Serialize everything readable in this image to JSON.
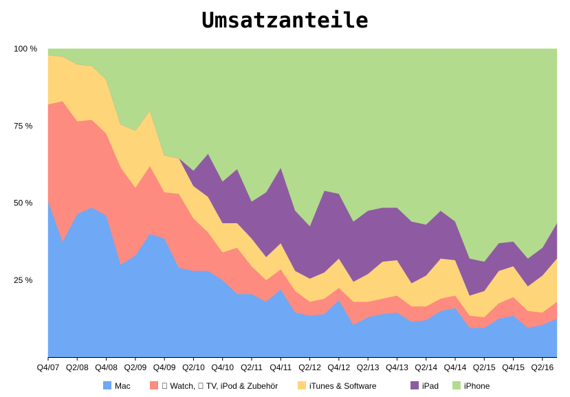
{
  "chart_data": {
    "type": "area",
    "title": "Umsatzanteile",
    "xlabel": "",
    "ylabel": "",
    "ylim": [
      0,
      100
    ],
    "y_ticks": [
      "25 %",
      "50 %",
      "75 %",
      "100 %"
    ],
    "x": [
      "Q4/07",
      "Q1/08",
      "Q2/08",
      "Q3/08",
      "Q4/08",
      "Q1/09",
      "Q2/09",
      "Q3/09",
      "Q4/09",
      "Q1/10",
      "Q2/10",
      "Q3/10",
      "Q4/10",
      "Q1/11",
      "Q2/11",
      "Q3/11",
      "Q4/11",
      "Q1/12",
      "Q2/12",
      "Q3/12",
      "Q4/12",
      "Q1/13",
      "Q2/13",
      "Q3/13",
      "Q4/13",
      "Q1/14",
      "Q2/14",
      "Q3/14",
      "Q4/14",
      "Q1/15",
      "Q2/15",
      "Q3/15",
      "Q4/15",
      "Q1/16",
      "Q2/16",
      "Q3/16"
    ],
    "x_tick_labels": [
      "Q4/07",
      "Q2/08",
      "Q4/08",
      "Q2/09",
      "Q4/09",
      "Q2/10",
      "Q4/10",
      "Q2/11",
      "Q4/11",
      "Q2/12",
      "Q4/12",
      "Q2/13",
      "Q4/13",
      "Q2/14",
      "Q4/14",
      "Q2/15",
      "Q4/15",
      "Q2/16"
    ],
    "legend_position": "bottom",
    "stacked": true,
    "series": [
      {
        "name": "Mac",
        "color": "#6fa8f5",
        "values": [
          50.5,
          37.5,
          46.5,
          48.5,
          46,
          30,
          33,
          40,
          38.5,
          29,
          28,
          28,
          25,
          20.5,
          20.5,
          18,
          22,
          14.5,
          13.5,
          14,
          18.5,
          10.5,
          13,
          14,
          14.5,
          11.5,
          12,
          15,
          16,
          9.5,
          9.5,
          12.5,
          13.5,
          9.5,
          10.5,
          12.5
        ]
      },
      {
        "name": " Watch,  TV, iPod & Zubehör",
        "color": "#fd8b80",
        "values": [
          31.5,
          45.5,
          30,
          28.5,
          26.5,
          31.5,
          22,
          22,
          15,
          24,
          17,
          12.5,
          9,
          15,
          9,
          7,
          6.5,
          7,
          4.5,
          5,
          4,
          7.5,
          5,
          5,
          5.5,
          5,
          4.5,
          4,
          4,
          4,
          3.5,
          5,
          6,
          5.5,
          4,
          5.5
        ]
      },
      {
        "name": "iTunes & Software",
        "color": "#fed579",
        "values": [
          16,
          14.5,
          18.5,
          17.5,
          17.5,
          14,
          18.5,
          18,
          12,
          11.5,
          10.5,
          11.5,
          9.5,
          8,
          9,
          7.5,
          8.5,
          6.5,
          7.5,
          8.5,
          9.5,
          6.5,
          9,
          12,
          11.5,
          7.5,
          10,
          13,
          11.5,
          6.5,
          8.5,
          10.5,
          10,
          8,
          12,
          14
        ]
      },
      {
        "name": "iPad",
        "color": "#8e5ba2",
        "values": [
          0,
          0,
          0,
          0,
          0,
          0,
          0,
          0,
          0,
          0,
          5,
          14,
          13.5,
          17.5,
          12,
          21,
          24.5,
          19.5,
          17,
          26.5,
          21,
          19.5,
          20.5,
          17.5,
          17,
          20,
          16.5,
          15.5,
          12.5,
          12,
          9.5,
          9,
          8,
          9,
          9,
          11.5
        ]
      },
      {
        "name": "iPhone",
        "color": "#b2db8e",
        "values": [
          2,
          2.5,
          5,
          5.5,
          10,
          24.5,
          26.5,
          20,
          34.5,
          35.5,
          39.5,
          34,
          43,
          39,
          49.5,
          46.5,
          38.5,
          52.5,
          57.5,
          46,
          47,
          56,
          52.5,
          51.5,
          51.5,
          56,
          57,
          52.5,
          56,
          68,
          69,
          63,
          62.5,
          68,
          64.5,
          56.5
        ]
      }
    ]
  }
}
